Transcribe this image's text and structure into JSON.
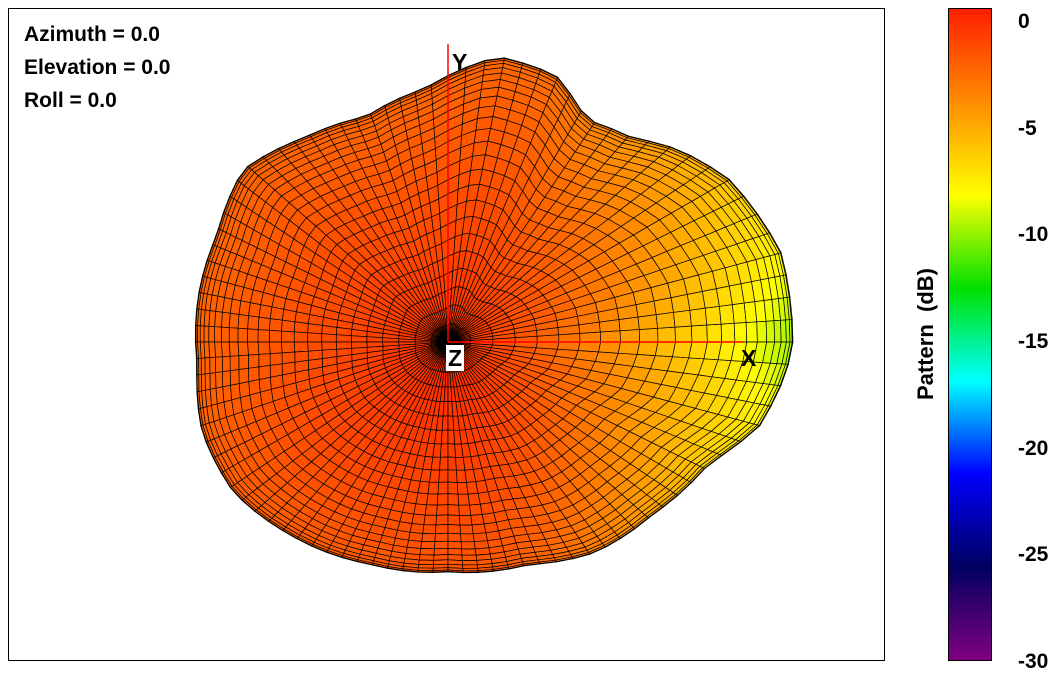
{
  "view": {
    "azimuth": "Azimuth = 0.0",
    "elevation": "Elevation = 0.0",
    "roll": "Roll = 0.0"
  },
  "axes": {
    "x": "X",
    "y": "Y",
    "z": "Z"
  },
  "colorbar": {
    "label": "Pattern  (dB)",
    "ticks": [
      "0",
      "-5",
      "-10",
      "-15",
      "-20",
      "-25",
      "-30"
    ],
    "range": [
      -30,
      0
    ],
    "colors": [
      "#ff1e00",
      "#ff8c00",
      "#ffff00",
      "#00e000",
      "#00ffff",
      "#0000ff",
      "#000060",
      "#800080"
    ]
  },
  "chart_data": {
    "type": "heatmap",
    "title": "",
    "zlabel": "Pattern  (dB)",
    "zlim": [
      -30,
      0
    ],
    "view": {
      "azimuth": 0.0,
      "elevation": 0.0,
      "roll": 0.0
    },
    "axes_shown": [
      "X",
      "Y",
      "Z"
    ],
    "grid": "spherical mesh",
    "peak_db": -0.5,
    "min_visible_db": -9,
    "colors": {
      "mesh_line": "#000000",
      "axis_line": "#ff0000"
    }
  }
}
